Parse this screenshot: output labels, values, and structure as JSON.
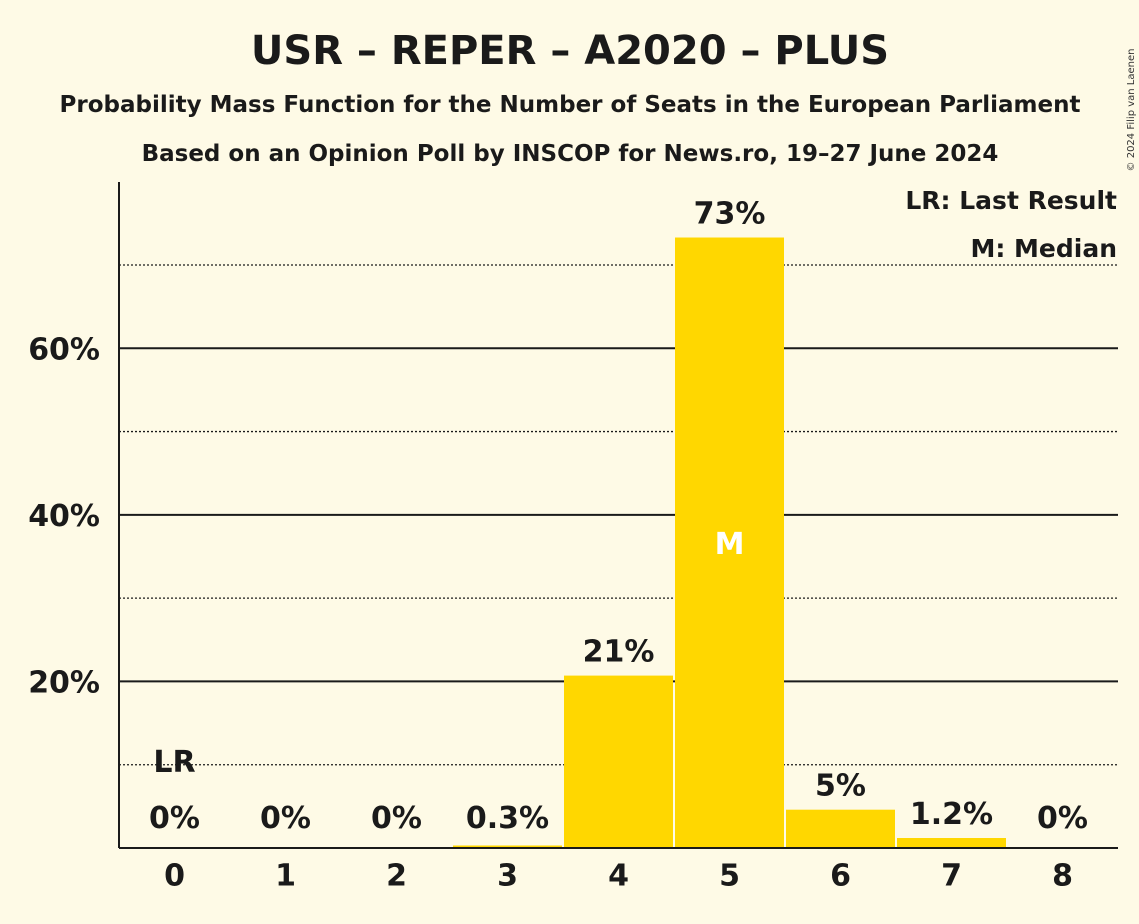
{
  "title": "USR – REPER – A2020 – PLUS",
  "subtitle1": "Probability Mass Function for the Number of Seats in the European Parliament",
  "subtitle2": "Based on an Opinion Poll by INSCOP for News.ro, 19–27 June 2024",
  "copyright": "© 2024 Filip van Laenen",
  "legend": {
    "last_result": "LR: Last Result",
    "median": "M: Median"
  },
  "colors": {
    "bar": "#ffd700",
    "background": "#fefae6",
    "text": "#1a1a1a"
  },
  "chart_data": {
    "type": "bar",
    "categories": [
      "0",
      "1",
      "2",
      "3",
      "4",
      "5",
      "6",
      "7",
      "8"
    ],
    "values": [
      0,
      0,
      0,
      0.3,
      20.7,
      73.3,
      4.6,
      1.2,
      0
    ],
    "labels": [
      "0%",
      "0%",
      "0%",
      "0.3%",
      "21%",
      "73%",
      "5%",
      "1.2%",
      "0%"
    ],
    "ylim": [
      0,
      80
    ],
    "yticks": [
      20,
      40,
      60
    ],
    "ytick_labels": [
      "20%",
      "40%",
      "60%"
    ],
    "minor_gridlines": [
      10,
      30,
      50,
      70
    ],
    "last_result": {
      "category": "0",
      "marker": "LR"
    },
    "median": {
      "category": "5",
      "marker": "M"
    },
    "grid": true,
    "legend_position": "top-right"
  }
}
